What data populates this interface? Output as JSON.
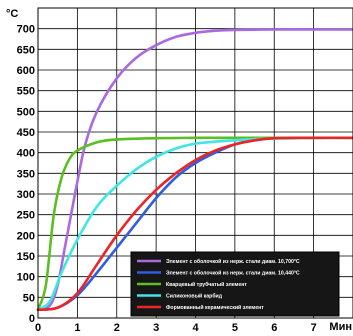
{
  "chart_data": {
    "type": "line",
    "ylabel": "°C",
    "xlabel": "Мин",
    "xlim": [
      0,
      8
    ],
    "ylim": [
      0,
      750
    ],
    "x_ticks": [
      "0",
      "1",
      "2",
      "3",
      "4",
      "5",
      "6",
      "7"
    ],
    "y_ticks": [
      "0",
      "50",
      "100",
      "150",
      "200",
      "250",
      "300",
      "350",
      "400",
      "450",
      "500",
      "550",
      "600",
      "650",
      "700"
    ],
    "grid": true,
    "legend_position": "bottom-right",
    "series": [
      {
        "name": "Элемент с оболочкой из нерж. стали диам. 10,700°C",
        "color": "#a96ae0",
        "points": [
          [
            0,
            20
          ],
          [
            0.3,
            30
          ],
          [
            0.5,
            80
          ],
          [
            0.7,
            180
          ],
          [
            0.9,
            280
          ],
          [
            1.0,
            330
          ],
          [
            1.2,
            420
          ],
          [
            1.5,
            500
          ],
          [
            2.0,
            580
          ],
          [
            2.5,
            630
          ],
          [
            3.0,
            660
          ],
          [
            3.5,
            680
          ],
          [
            4.0,
            690
          ],
          [
            4.5,
            695
          ],
          [
            5.0,
            697
          ],
          [
            6.0,
            698
          ],
          [
            7.0,
            698
          ],
          [
            8.0,
            698
          ]
        ]
      },
      {
        "name": "Элемент с оболочкой из нерж. стали диам. 10,440°C",
        "color": "#2f5ee0",
        "points": [
          [
            0,
            20
          ],
          [
            0.5,
            25
          ],
          [
            1.0,
            55
          ],
          [
            1.5,
            110
          ],
          [
            2.0,
            170
          ],
          [
            2.5,
            230
          ],
          [
            3.0,
            290
          ],
          [
            3.5,
            340
          ],
          [
            4.0,
            375
          ],
          [
            4.5,
            400
          ],
          [
            5.0,
            420
          ],
          [
            5.5,
            430
          ],
          [
            6.0,
            435
          ],
          [
            7.0,
            436
          ],
          [
            8.0,
            436
          ]
        ]
      },
      {
        "name": "Кварцевый трубчатый элемент",
        "color": "#5bbf21",
        "points": [
          [
            0,
            20
          ],
          [
            0.2,
            80
          ],
          [
            0.4,
            250
          ],
          [
            0.6,
            340
          ],
          [
            0.8,
            385
          ],
          [
            1.0,
            405
          ],
          [
            1.5,
            425
          ],
          [
            2.0,
            432
          ],
          [
            3.0,
            435
          ],
          [
            4.0,
            436
          ],
          [
            5.0,
            436
          ],
          [
            8.0,
            436
          ]
        ]
      },
      {
        "name": "Силиконовый карбид",
        "color": "#3fe6e6",
        "points": [
          [
            0,
            20
          ],
          [
            0.3,
            40
          ],
          [
            0.6,
            110
          ],
          [
            1.0,
            190
          ],
          [
            1.5,
            270
          ],
          [
            2.0,
            320
          ],
          [
            2.5,
            360
          ],
          [
            3.0,
            390
          ],
          [
            3.5,
            410
          ],
          [
            4.0,
            422
          ],
          [
            5.0,
            430
          ],
          [
            6.0,
            434
          ],
          [
            8.0,
            436
          ]
        ]
      },
      {
        "name": "Формованный керамический элемент",
        "color": "#ee2424",
        "points": [
          [
            0,
            20
          ],
          [
            0.5,
            25
          ],
          [
            1.0,
            60
          ],
          [
            1.5,
            130
          ],
          [
            2.0,
            200
          ],
          [
            2.5,
            260
          ],
          [
            3.0,
            310
          ],
          [
            3.5,
            350
          ],
          [
            4.0,
            382
          ],
          [
            4.5,
            405
          ],
          [
            5.0,
            420
          ],
          [
            5.5,
            430
          ],
          [
            6.0,
            435
          ],
          [
            7.0,
            436
          ],
          [
            8.0,
            436
          ]
        ]
      }
    ]
  }
}
